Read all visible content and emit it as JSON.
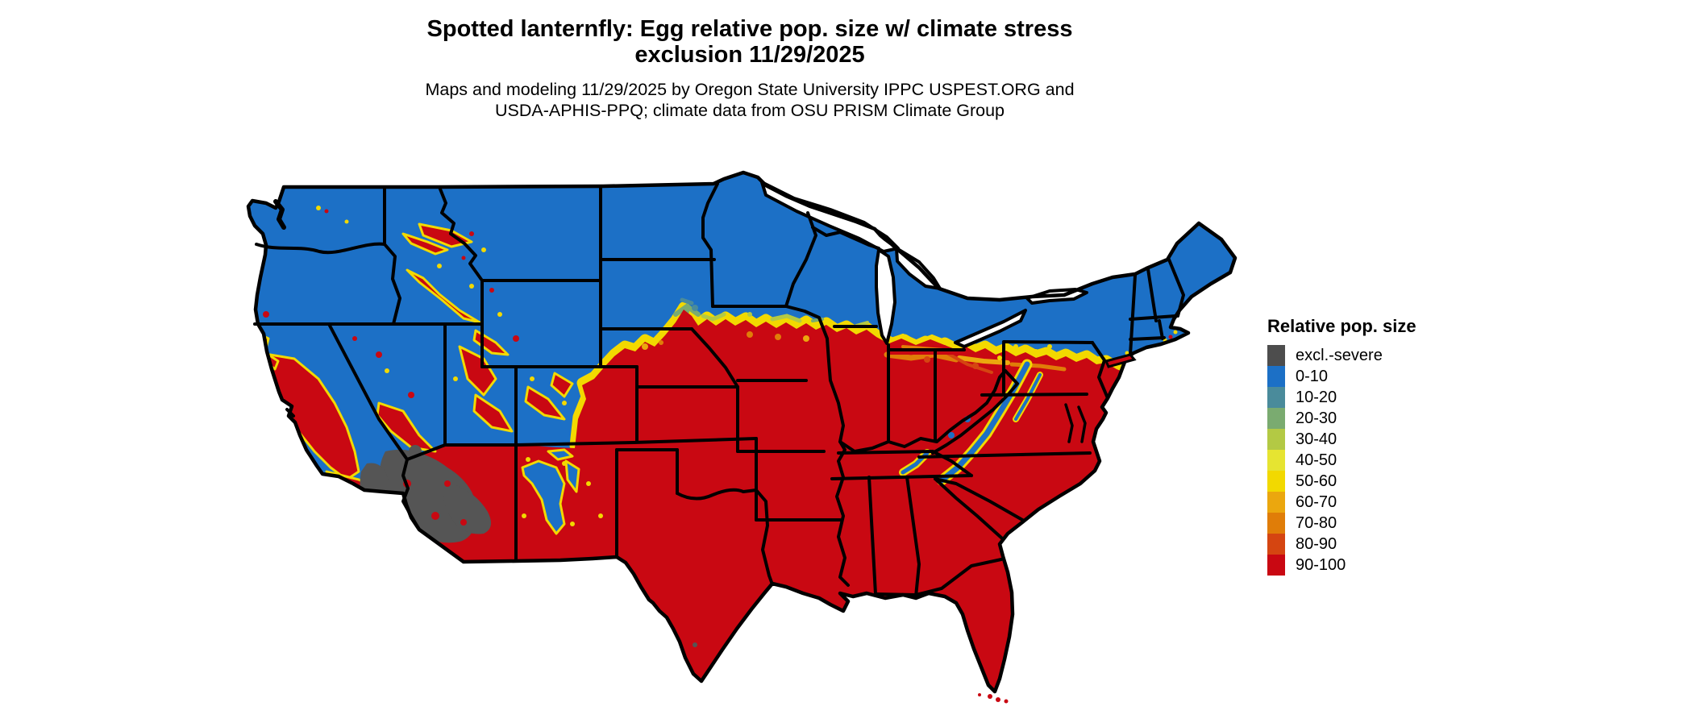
{
  "header": {
    "title_line1": "Spotted lanternfly: Egg relative pop. size w/ climate stress",
    "title_line2": "exclusion 11/29/2025",
    "subtitle_line1": "Maps and modeling 11/29/2025 by Oregon State University IPPC USPEST.ORG and",
    "subtitle_line2": "USDA-APHIS-PPQ; climate data from OSU PRISM Climate Group"
  },
  "legend": {
    "title": "Relative pop. size",
    "items": [
      {
        "label": "excl.-severe",
        "color": "#4d4d4d"
      },
      {
        "label": "0-10",
        "color": "#1c70c6"
      },
      {
        "label": "10-20",
        "color": "#4a8b9b"
      },
      {
        "label": "20-30",
        "color": "#7aab70"
      },
      {
        "label": "30-40",
        "color": "#b3c944"
      },
      {
        "label": "40-50",
        "color": "#e6e431"
      },
      {
        "label": "50-60",
        "color": "#f2d900"
      },
      {
        "label": "60-70",
        "color": "#eba70e"
      },
      {
        "label": "70-80",
        "color": "#e07d08"
      },
      {
        "label": "80-90",
        "color": "#d54511"
      },
      {
        "label": "90-100",
        "color": "#c90812"
      }
    ]
  },
  "map": {
    "region": "Contiguous United States",
    "variable": "Egg relative population size with climate stress exclusion",
    "date": "11/29/2025",
    "colors": {
      "low_population_blue": "#1c70c6",
      "high_population_red": "#c90812",
      "transition_yellow": "#f2d900",
      "exclusion_gray": "#555555",
      "state_border": "#000000",
      "water_background": "#ffffff"
    }
  }
}
